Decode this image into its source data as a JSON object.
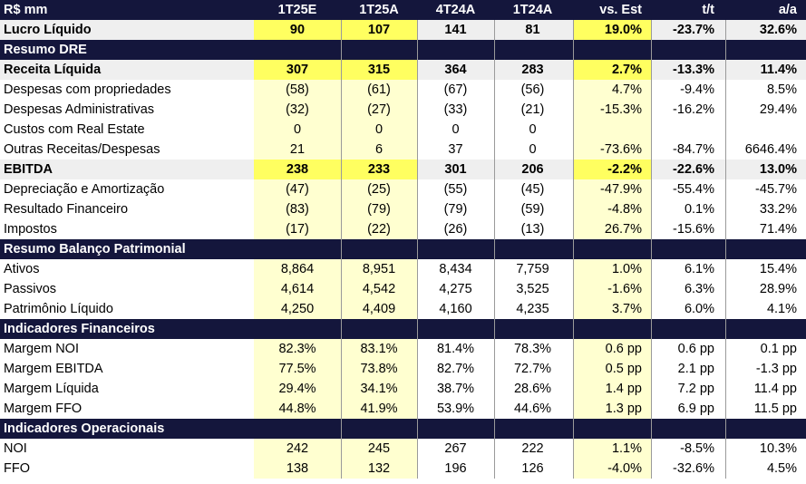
{
  "header": {
    "label": "R$ mm",
    "columns": [
      "1T25E",
      "1T25A",
      "4T24A",
      "1T24A",
      "vs. Est",
      "t/t",
      "a/a"
    ]
  },
  "rows": [
    {
      "kind": "strong",
      "label": "Lucro Líquido",
      "values": [
        "90",
        "107",
        "141",
        "81",
        "19.0%",
        "-23.7%",
        "32.6%"
      ]
    },
    {
      "kind": "section",
      "label": "Resumo DRE"
    },
    {
      "kind": "strong",
      "label": "Receita Líquida",
      "values": [
        "307",
        "315",
        "364",
        "283",
        "2.7%",
        "-13.3%",
        "11.4%"
      ]
    },
    {
      "kind": "data",
      "label": "Despesas com propriedades",
      "values": [
        "(58)",
        "(61)",
        "(67)",
        "(56)",
        "4.7%",
        "-9.4%",
        "8.5%"
      ]
    },
    {
      "kind": "data",
      "label": "Despesas Administrativas",
      "values": [
        "(32)",
        "(27)",
        "(33)",
        "(21)",
        "-15.3%",
        "-16.2%",
        "29.4%"
      ]
    },
    {
      "kind": "data",
      "label": "Custos com Real Estate",
      "values": [
        "0",
        "0",
        "0",
        "0",
        "",
        "",
        ""
      ]
    },
    {
      "kind": "data",
      "label": "Outras Receitas/Despesas",
      "values": [
        "21",
        "6",
        "37",
        "0",
        "-73.6%",
        "-84.7%",
        "6646.4%"
      ]
    },
    {
      "kind": "strong",
      "label": "EBITDA",
      "values": [
        "238",
        "233",
        "301",
        "206",
        "-2.2%",
        "-22.6%",
        "13.0%"
      ]
    },
    {
      "kind": "data",
      "label": "Depreciação e Amortização",
      "values": [
        "(47)",
        "(25)",
        "(55)",
        "(45)",
        "-47.9%",
        "-55.4%",
        "-45.7%"
      ]
    },
    {
      "kind": "data",
      "label": "Resultado Financeiro",
      "values": [
        "(83)",
        "(79)",
        "(79)",
        "(59)",
        "-4.8%",
        "0.1%",
        "33.2%"
      ]
    },
    {
      "kind": "data",
      "label": "Impostos",
      "values": [
        "(17)",
        "(22)",
        "(26)",
        "(13)",
        "26.7%",
        "-15.6%",
        "71.4%"
      ]
    },
    {
      "kind": "section",
      "label": "Resumo Balanço Patrimonial"
    },
    {
      "kind": "data",
      "label": "Ativos",
      "values": [
        "8,864",
        "8,951",
        "8,434",
        "7,759",
        "1.0%",
        "6.1%",
        "15.4%"
      ]
    },
    {
      "kind": "data",
      "label": "Passivos",
      "values": [
        "4,614",
        "4,542",
        "4,275",
        "3,525",
        "-1.6%",
        "6.3%",
        "28.9%"
      ]
    },
    {
      "kind": "data",
      "label": "Patrimônio Líquido",
      "values": [
        "4,250",
        "4,409",
        "4,160",
        "4,235",
        "3.7%",
        "6.0%",
        "4.1%"
      ]
    },
    {
      "kind": "section",
      "label": "Indicadores Financeiros"
    },
    {
      "kind": "data",
      "label": "Margem NOI",
      "values": [
        "82.3%",
        "83.1%",
        "81.4%",
        "78.3%",
        "0.6 pp",
        "0.6 pp",
        "0.1 pp"
      ]
    },
    {
      "kind": "data",
      "label": "Margem EBITDA",
      "values": [
        "77.5%",
        "73.8%",
        "82.7%",
        "72.7%",
        "0.5 pp",
        "2.1 pp",
        "-1.3 pp"
      ]
    },
    {
      "kind": "data",
      "label": "Margem Líquida",
      "values": [
        "29.4%",
        "34.1%",
        "38.7%",
        "28.6%",
        "1.4 pp",
        "7.2 pp",
        "11.4 pp"
      ]
    },
    {
      "kind": "data",
      "label": "Margem FFO",
      "values": [
        "44.8%",
        "41.9%",
        "53.9%",
        "44.6%",
        "1.3 pp",
        "6.9 pp",
        "11.5 pp"
      ]
    },
    {
      "kind": "section",
      "label": "Indicadores Operacionais"
    },
    {
      "kind": "data",
      "label": "NOI",
      "values": [
        "242",
        "245",
        "267",
        "222",
        "1.1%",
        "-8.5%",
        "10.3%"
      ]
    },
    {
      "kind": "data",
      "label": "FFO",
      "values": [
        "138",
        "132",
        "196",
        "126",
        "-4.0%",
        "-32.6%",
        "4.5%"
      ]
    }
  ],
  "colors": {
    "header_bg": "#14163c",
    "highlight_light": "#ffffd0",
    "highlight_strong": "#ffff60",
    "strong_row_bg": "#efefef"
  }
}
